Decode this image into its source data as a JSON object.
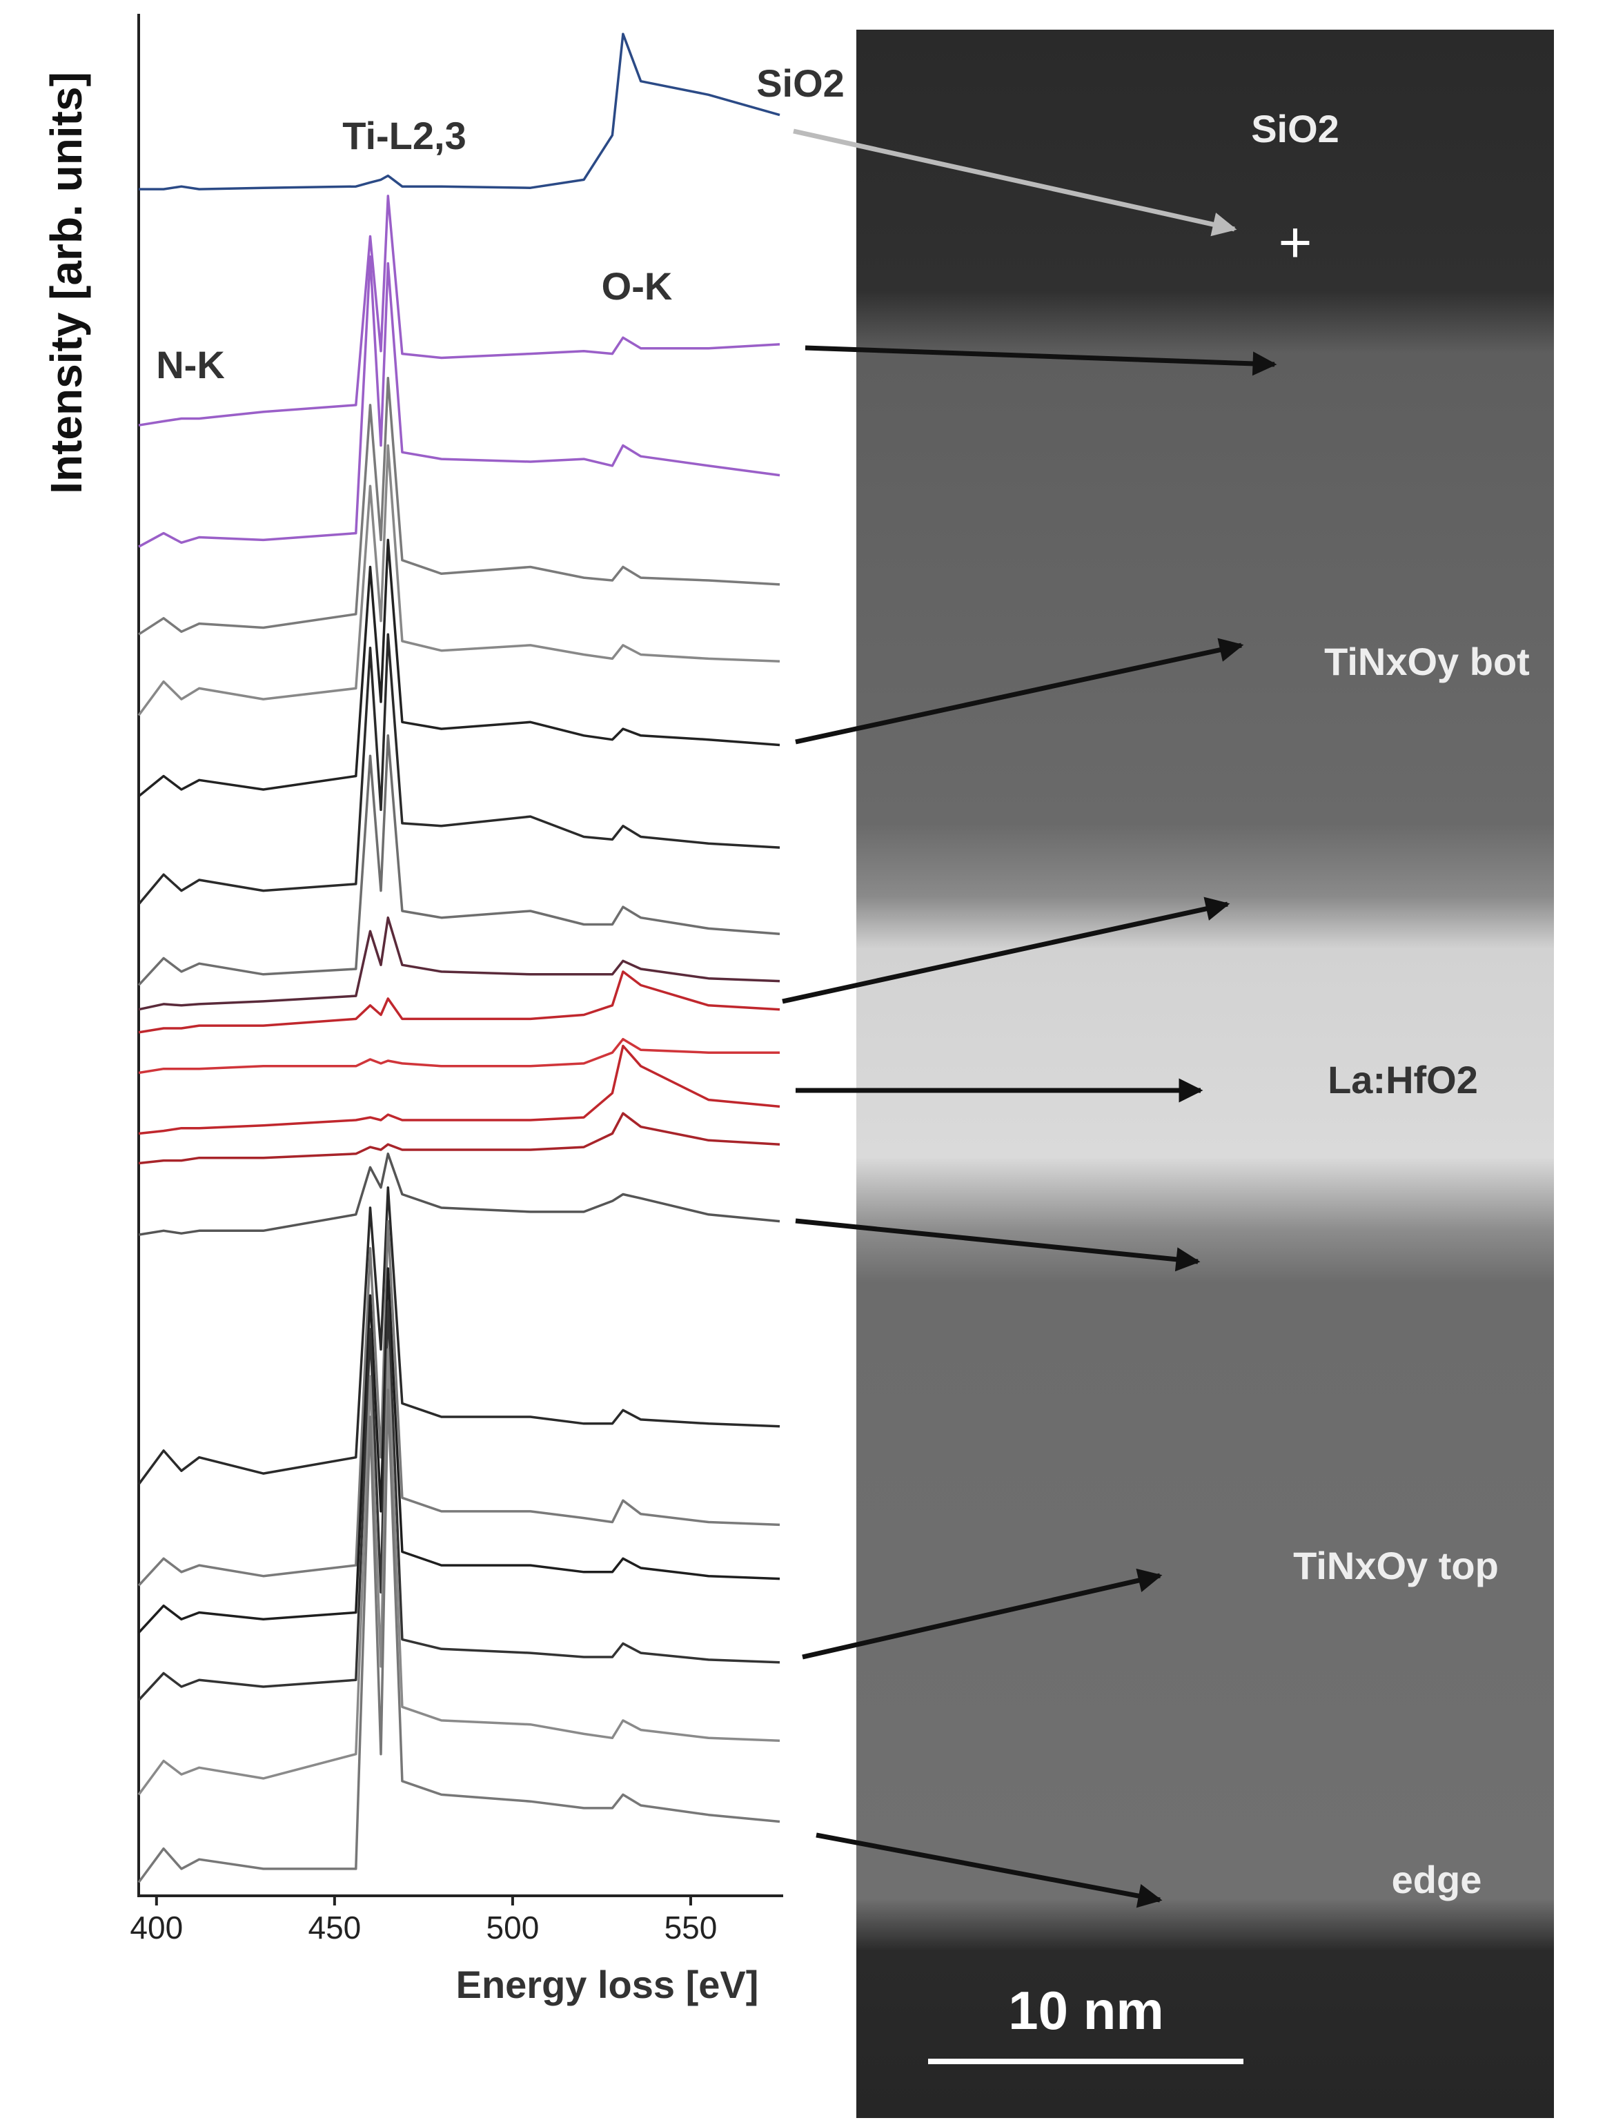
{
  "chart_data": {
    "type": "line",
    "ylabel": "Intensity [arb. units]",
    "xlabel": "Energy loss [eV]",
    "annotations": [
      "Ti-L2,3",
      "SiO2",
      "O-K",
      "N-K"
    ],
    "x": [
      395,
      402,
      407,
      412,
      430,
      456,
      460,
      463,
      465,
      469,
      480,
      505,
      520,
      528,
      531,
      536,
      555,
      575
    ],
    "xlim": [
      395,
      575
    ],
    "xticks": [
      400,
      450,
      500,
      550
    ],
    "ylim": [
      -5,
      1390
    ],
    "series": [
      {
        "color": "#2b4a86",
        "values": [
          1260,
          1260,
          1262,
          1260,
          1261,
          1262,
          1265,
          1267,
          1270,
          1262,
          1262,
          1261,
          1267,
          1300,
          1375,
          1340,
          1330,
          1315
        ]
      },
      {
        "color": "#9a5fc8",
        "values": [
          1085,
          1088,
          1090,
          1090,
          1095,
          1100,
          1225,
          1140,
          1255,
          1138,
          1135,
          1138,
          1140,
          1138,
          1150,
          1142,
          1142,
          1145
        ]
      },
      {
        "color": "#9a5fc8",
        "values": [
          995,
          1005,
          998,
          1002,
          1000,
          1005,
          1210,
          1070,
          1205,
          1065,
          1060,
          1058,
          1060,
          1055,
          1070,
          1062,
          1055,
          1048
        ]
      },
      {
        "color": "#7a7a7a",
        "values": [
          930,
          942,
          932,
          938,
          935,
          945,
          1100,
          1000,
          1120,
          985,
          975,
          980,
          972,
          970,
          980,
          972,
          970,
          967
        ]
      },
      {
        "color": "#888888",
        "values": [
          870,
          895,
          882,
          890,
          882,
          890,
          1040,
          940,
          1070,
          925,
          918,
          922,
          915,
          912,
          922,
          915,
          912,
          910
        ]
      },
      {
        "color": "#222222",
        "values": [
          810,
          825,
          815,
          822,
          815,
          825,
          980,
          880,
          1000,
          865,
          860,
          865,
          855,
          852,
          860,
          855,
          852,
          848
        ]
      },
      {
        "color": "#2a2a2a",
        "values": [
          730,
          752,
          740,
          748,
          740,
          745,
          920,
          800,
          930,
          790,
          788,
          795,
          780,
          778,
          788,
          780,
          775,
          772
        ]
      },
      {
        "color": "#6e6e6e",
        "values": [
          670,
          690,
          680,
          686,
          678,
          682,
          840,
          740,
          855,
          725,
          720,
          725,
          715,
          715,
          728,
          720,
          712,
          708
        ]
      },
      {
        "color": "#5a2a3a",
        "values": [
          652,
          656,
          655,
          656,
          658,
          662,
          710,
          685,
          720,
          685,
          680,
          678,
          678,
          678,
          688,
          682,
          675,
          673
        ]
      },
      {
        "color": "#c0272d",
        "values": [
          635,
          638,
          638,
          640,
          640,
          645,
          655,
          648,
          660,
          645,
          645,
          645,
          648,
          655,
          680,
          670,
          655,
          652
        ]
      },
      {
        "color": "#d0353a",
        "values": [
          605,
          608,
          608,
          608,
          610,
          610,
          615,
          612,
          614,
          612,
          610,
          610,
          612,
          620,
          630,
          622,
          620,
          620
        ]
      },
      {
        "color": "#c0272d",
        "values": [
          560,
          562,
          564,
          564,
          566,
          570,
          572,
          570,
          574,
          570,
          570,
          570,
          572,
          590,
          625,
          610,
          585,
          580
        ]
      },
      {
        "color": "#a8242a",
        "values": [
          538,
          540,
          540,
          542,
          542,
          545,
          550,
          548,
          552,
          548,
          548,
          548,
          550,
          560,
          575,
          565,
          555,
          552
        ]
      },
      {
        "color": "#555555",
        "values": [
          485,
          488,
          486,
          488,
          488,
          500,
          535,
          520,
          545,
          515,
          505,
          502,
          502,
          510,
          515,
          512,
          500,
          495
        ]
      },
      {
        "color": "#2a2a2a",
        "values": [
          300,
          325,
          310,
          320,
          308,
          320,
          505,
          400,
          520,
          360,
          350,
          350,
          345,
          345,
          355,
          348,
          345,
          343
        ]
      },
      {
        "color": "#7a7a7a",
        "values": [
          225,
          245,
          235,
          240,
          232,
          240,
          475,
          320,
          495,
          290,
          280,
          280,
          275,
          272,
          288,
          278,
          272,
          270
        ]
      },
      {
        "color": "#1e1e1e",
        "values": [
          190,
          210,
          200,
          205,
          200,
          205,
          440,
          280,
          460,
          250,
          240,
          240,
          235,
          235,
          245,
          238,
          232,
          230
        ]
      },
      {
        "color": "#333333",
        "values": [
          140,
          160,
          150,
          155,
          150,
          155,
          415,
          220,
          435,
          185,
          178,
          175,
          172,
          172,
          182,
          175,
          170,
          168
        ]
      },
      {
        "color": "#8a8a8a",
        "values": [
          70,
          95,
          85,
          90,
          82,
          100,
          380,
          165,
          400,
          135,
          125,
          122,
          115,
          112,
          125,
          118,
          112,
          110
        ]
      },
      {
        "color": "#777777",
        "values": [
          5,
          30,
          15,
          22,
          15,
          15,
          350,
          100,
          370,
          80,
          70,
          65,
          60,
          60,
          70,
          62,
          55,
          50
        ]
      }
    ]
  },
  "image": {
    "labels": [
      "SiO2",
      "TiNxOy bot",
      "La:HfO2",
      "TiNxOy top",
      "edge"
    ],
    "marker": "+",
    "scale_bar": "10 nm"
  }
}
